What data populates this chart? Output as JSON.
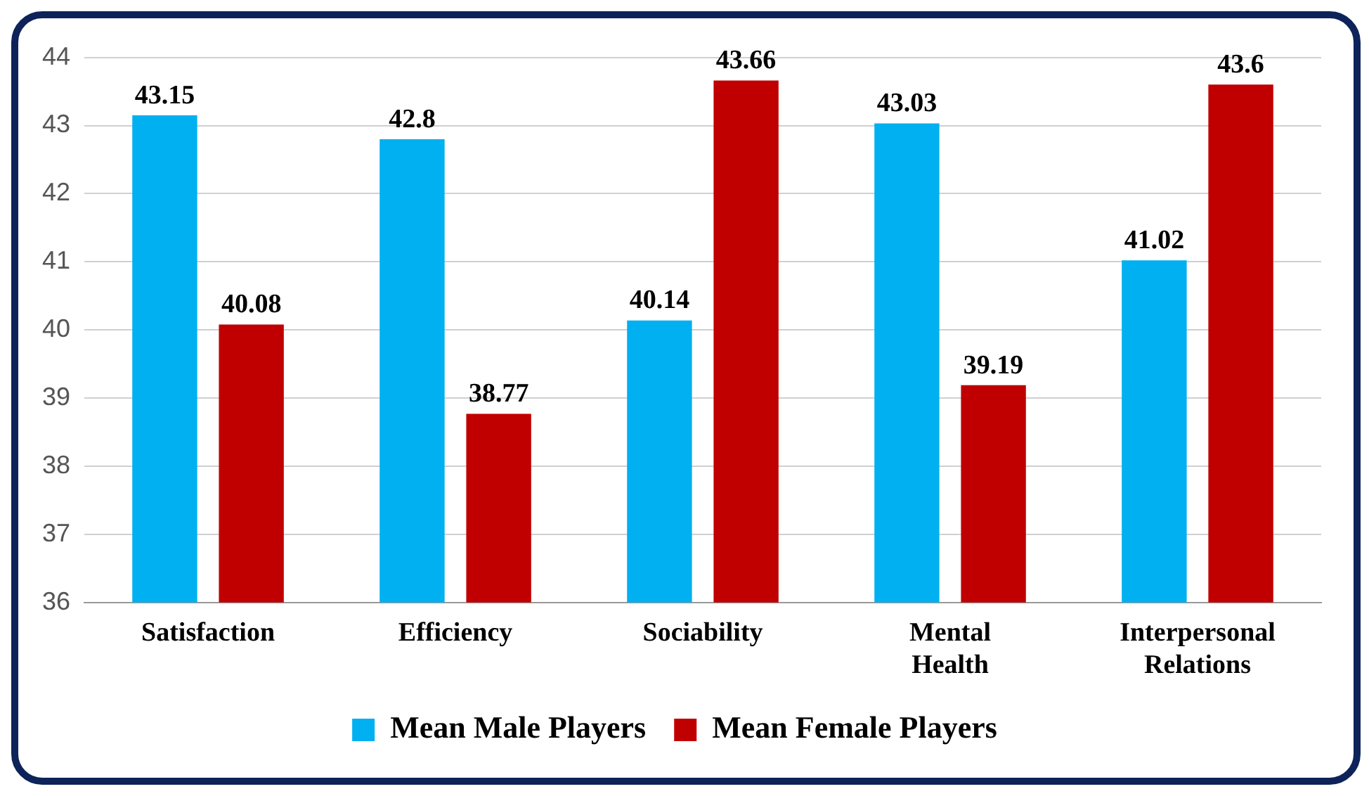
{
  "chart_data": {
    "type": "bar",
    "categories": [
      "Satisfaction",
      "Efficiency",
      "Sociability",
      "Mental Health",
      "Interpersonal Relations"
    ],
    "series": [
      {
        "name": "Mean Male Players",
        "color": "#00b0f0",
        "values": [
          43.15,
          42.8,
          40.14,
          43.03,
          41.02
        ]
      },
      {
        "name": "Mean Female Players",
        "color": "#c00000",
        "values": [
          40.08,
          38.77,
          43.66,
          39.19,
          43.6
        ]
      }
    ],
    "ylim": [
      36,
      44
    ],
    "yticks": [
      36,
      37,
      38,
      39,
      40,
      41,
      42,
      43,
      44
    ],
    "grid": "y",
    "legend": "bottom",
    "data_labels": true
  }
}
